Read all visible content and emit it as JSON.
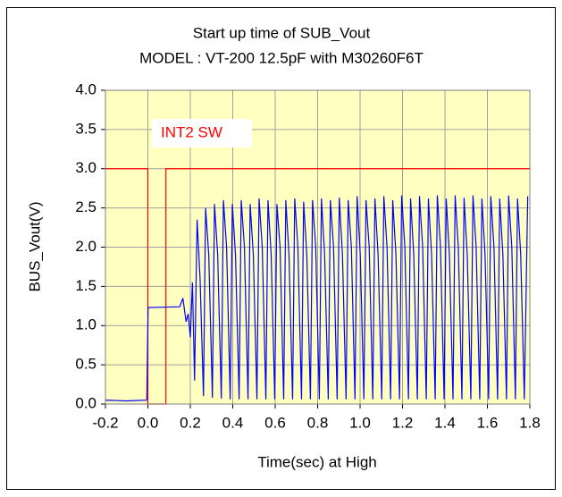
{
  "chart_data": {
    "type": "line",
    "title": "Start up time of SUB_Vout",
    "subtitle": "MODEL : VT-200 12.5pF with M30260F6T",
    "x_label": "Time(sec)  at  High",
    "y_label": "BUS_Vout(V)",
    "annotation": "INT2 SW",
    "xlim": [
      -0.2,
      1.8
    ],
    "ylim": [
      0,
      4
    ],
    "xticks": [
      -0.2,
      {
        "value": 0,
        "label": "0.0"
      },
      0.2,
      0.4,
      0.6,
      0.8,
      {
        "value": 1,
        "label": "1.0"
      },
      1.2,
      1.4,
      1.6,
      1.8
    ],
    "yticks": [
      {
        "value": 0,
        "label": "0.0"
      },
      0.5,
      {
        "value": 1,
        "label": "1.0"
      },
      1.5,
      {
        "value": 2,
        "label": "2.0"
      },
      2.5,
      {
        "value": 3,
        "label": "3.0"
      },
      3.5,
      {
        "value": 4,
        "label": "4.0"
      }
    ],
    "grid": true,
    "background": "#ffffc0",
    "series": [
      {
        "color": "#ff0000",
        "x": [
          -0.2,
          0.0,
          0.0,
          0.085,
          0.085,
          1.8
        ],
        "values": [
          3.0,
          3.0,
          0.0,
          0.0,
          3.0,
          3.0
        ]
      },
      {
        "color": "#0000ff",
        "x": [
          -0.2,
          -0.1,
          -0.005,
          0.001,
          0.15,
          0.165,
          0.18,
          0.19,
          0.2,
          0.21,
          0.22,
          0.232,
          0.246,
          0.262,
          0.272,
          0.287,
          0.304,
          0.314,
          0.329,
          0.346,
          0.356,
          0.371,
          0.388,
          0.398,
          0.413,
          0.43,
          0.44,
          0.455,
          0.472,
          0.482,
          0.497,
          0.514,
          0.524,
          0.539,
          0.556,
          0.566,
          0.581,
          0.598,
          0.608,
          0.623,
          0.64,
          0.65,
          0.665,
          0.682,
          0.692,
          0.707,
          0.724,
          0.734,
          0.749,
          0.766,
          0.776,
          0.791,
          0.808,
          0.818,
          0.833,
          0.85,
          0.86,
          0.875,
          0.892,
          0.902,
          0.917,
          0.934,
          0.944,
          0.959,
          0.976,
          0.986,
          1.001,
          1.018,
          1.028,
          1.043,
          1.06,
          1.07,
          1.085,
          1.102,
          1.112,
          1.127,
          1.144,
          1.154,
          1.169,
          1.186,
          1.196,
          1.211,
          1.228,
          1.238,
          1.253,
          1.27,
          1.28,
          1.295,
          1.312,
          1.322,
          1.337,
          1.354,
          1.364,
          1.379,
          1.396,
          1.406,
          1.421,
          1.438,
          1.448,
          1.463,
          1.48,
          1.49,
          1.505,
          1.522,
          1.532,
          1.547,
          1.564,
          1.574,
          1.589,
          1.606,
          1.616,
          1.631,
          1.648,
          1.658,
          1.673,
          1.69,
          1.7,
          1.715,
          1.732,
          1.742,
          1.757,
          1.774,
          1.79
        ],
        "values": [
          0.05,
          0.04,
          0.05,
          1.23,
          1.24,
          1.35,
          1.05,
          1.15,
          0.85,
          1.55,
          0.3,
          2.35,
          1.6,
          0.1,
          2.5,
          1.9,
          0.08,
          2.55,
          1.9,
          0.07,
          2.6,
          2.0,
          0.06,
          2.55,
          1.9,
          0.06,
          2.6,
          2.0,
          0.06,
          2.55,
          1.9,
          0.06,
          2.62,
          2.0,
          0.06,
          2.6,
          1.9,
          0.06,
          2.55,
          2.0,
          0.06,
          2.6,
          1.9,
          0.06,
          2.62,
          2.0,
          0.06,
          2.58,
          1.9,
          0.06,
          2.6,
          2.0,
          0.06,
          2.62,
          1.9,
          0.06,
          2.6,
          2.0,
          0.06,
          2.63,
          1.9,
          0.06,
          2.6,
          2.0,
          0.06,
          2.65,
          1.9,
          0.06,
          2.6,
          2.0,
          0.06,
          2.62,
          1.9,
          0.06,
          2.65,
          2.0,
          0.06,
          2.6,
          1.9,
          0.06,
          2.66,
          2.0,
          0.06,
          2.62,
          1.9,
          0.06,
          2.65,
          2.0,
          0.06,
          2.62,
          1.9,
          0.06,
          2.66,
          2.0,
          0.06,
          2.62,
          1.9,
          0.06,
          2.66,
          2.0,
          0.06,
          2.63,
          1.9,
          0.06,
          2.66,
          2.0,
          0.06,
          2.62,
          1.9,
          0.06,
          2.65,
          2.0,
          0.06,
          2.62,
          1.9,
          0.06,
          2.66,
          2.0,
          0.06,
          2.62,
          1.9,
          0.06,
          2.65
        ]
      }
    ]
  }
}
